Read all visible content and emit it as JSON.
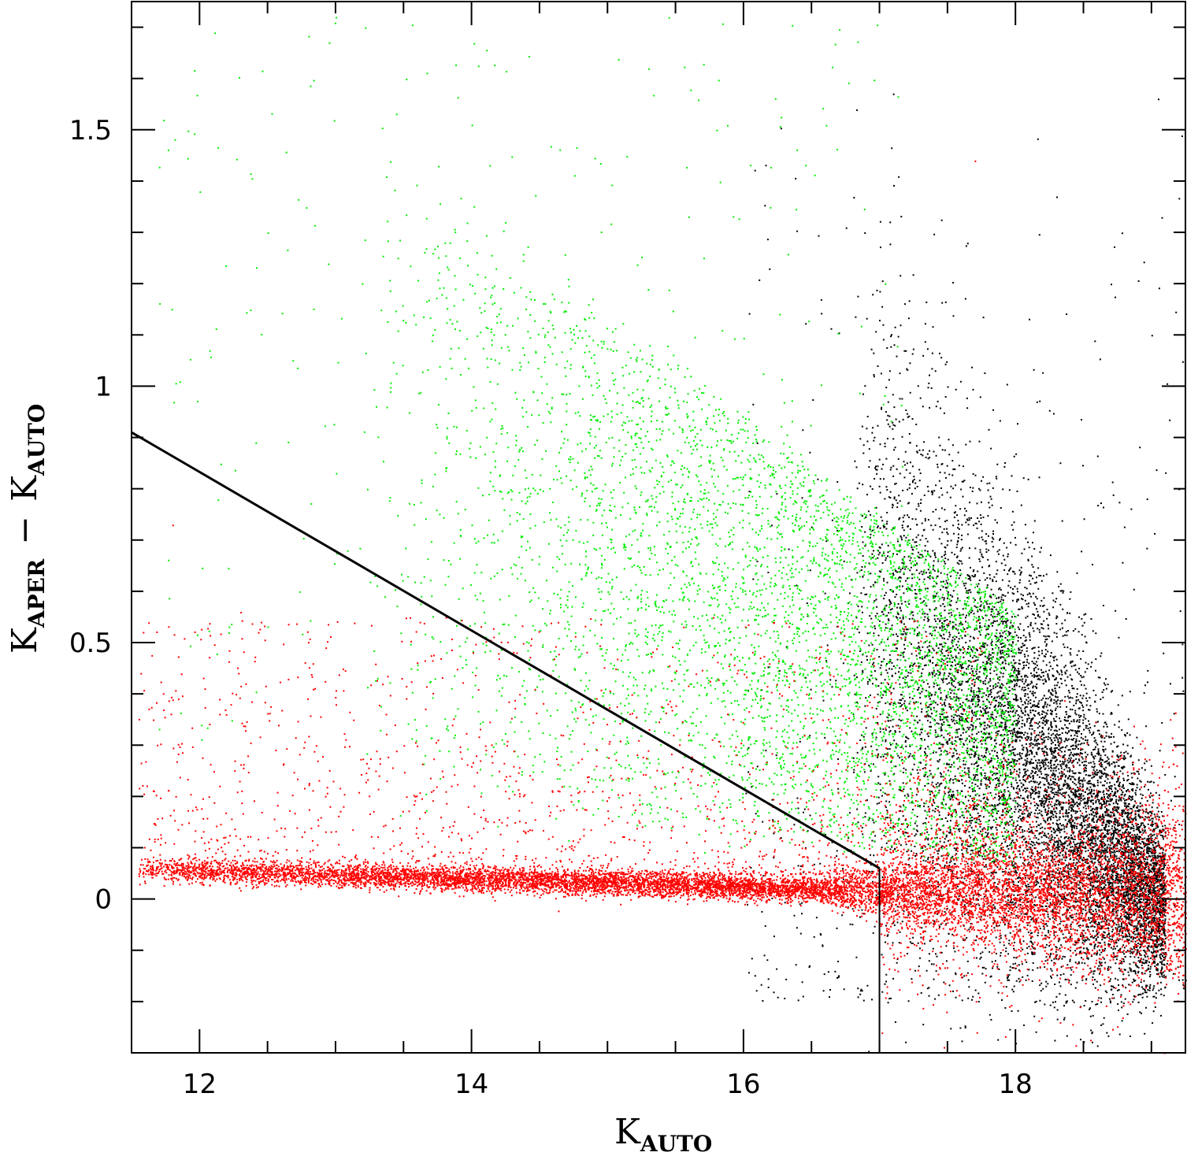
{
  "chart_data": {
    "type": "scatter",
    "title": "",
    "xlabel": {
      "main": "K",
      "sub": "AUTO"
    },
    "ylabel": {
      "main1": "K",
      "sub1": "APER",
      "dash": "−",
      "main2": "K",
      "sub2": "AUTO"
    },
    "xlim": [
      11.5,
      19.25
    ],
    "ylim": [
      -0.3,
      1.75
    ],
    "xticks": [
      12,
      14,
      16,
      18
    ],
    "xtick_labels": [
      "12",
      "14",
      "16",
      "18"
    ],
    "xminor_step": 0.5,
    "yticks": [
      0,
      0.5,
      1,
      1.5
    ],
    "ytick_labels": [
      "0",
      "0.5",
      "1",
      "1.5"
    ],
    "yminor_step": 0.1,
    "grid": false,
    "legend": "none",
    "colors": {
      "black_series": "#000000",
      "green_series": "#00ee00",
      "red_series": "#ff0000",
      "frame": "#000000"
    },
    "series": [
      {
        "color": "black",
        "description_points": "faint sources clustered near K_AUTO 17-19.25, K_APER-K_AUTO -0.2 to 0.8",
        "sample_points": [
          [
            17.2,
            0.75
          ],
          [
            17.5,
            0.6
          ],
          [
            17.9,
            0.5
          ],
          [
            18.2,
            0.35
          ],
          [
            18.5,
            0.25
          ],
          [
            18.8,
            0.1
          ],
          [
            19.0,
            0.0
          ],
          [
            19.1,
            -0.15
          ],
          [
            18.3,
            1.37
          ],
          [
            18.7,
            1.2
          ],
          [
            19.0,
            1.1
          ],
          [
            18.4,
            0.6
          ],
          [
            17.8,
            0.4
          ],
          [
            18.9,
            -0.2
          ]
        ]
      },
      {
        "color": "green",
        "description_points": "extended sources spread over K_AUTO 12-18, K_APER-K_AUTO 0.1 to 1.7",
        "sample_points": [
          [
            12.0,
            1.38
          ],
          [
            12.5,
            1.3
          ],
          [
            13.0,
            1.72
          ],
          [
            13.4,
            0.99
          ],
          [
            14.0,
            1.51
          ],
          [
            14.5,
            0.8
          ],
          [
            15.0,
            0.6
          ],
          [
            15.3,
            1.62
          ],
          [
            15.5,
            0.5
          ],
          [
            16.0,
            0.4
          ],
          [
            16.3,
            0.3
          ],
          [
            16.5,
            0.2
          ],
          [
            16.8,
            0.15
          ],
          [
            17.3,
            0.1
          ],
          [
            17.5,
            0.2
          ],
          [
            15.8,
            1.5
          ]
        ]
      },
      {
        "color": "red",
        "description_points": "stellar locus near K_APER-K_AUTO 0.02-0.08 across K_AUTO 11.5-19.25, plus scatter below 0.5",
        "sample_points": [
          [
            11.6,
            0.05
          ],
          [
            12.0,
            0.06
          ],
          [
            12.5,
            0.06
          ],
          [
            13.0,
            0.05
          ],
          [
            13.5,
            0.05
          ],
          [
            14.0,
            0.04
          ],
          [
            14.5,
            0.04
          ],
          [
            15.0,
            0.035
          ],
          [
            15.5,
            0.03
          ],
          [
            16.0,
            0.025
          ],
          [
            16.5,
            0.02
          ],
          [
            17.0,
            0.01
          ],
          [
            17.5,
            0.0
          ],
          [
            18.0,
            0.0
          ],
          [
            18.5,
            -0.01
          ],
          [
            19.0,
            -0.02
          ],
          [
            11.8,
            0.73
          ],
          [
            12.3,
            0.56
          ],
          [
            13.0,
            0.38
          ],
          [
            13.5,
            0.3
          ],
          [
            14.2,
            0.25
          ],
          [
            17.7,
            1.44
          ]
        ]
      }
    ],
    "annotations": [
      {
        "type": "line",
        "points": [
          [
            11.5,
            0.91
          ],
          [
            17.0,
            0.06
          ]
        ]
      },
      {
        "type": "line",
        "points": [
          [
            17.0,
            0.06
          ],
          [
            17.0,
            -0.3
          ]
        ]
      }
    ]
  }
}
